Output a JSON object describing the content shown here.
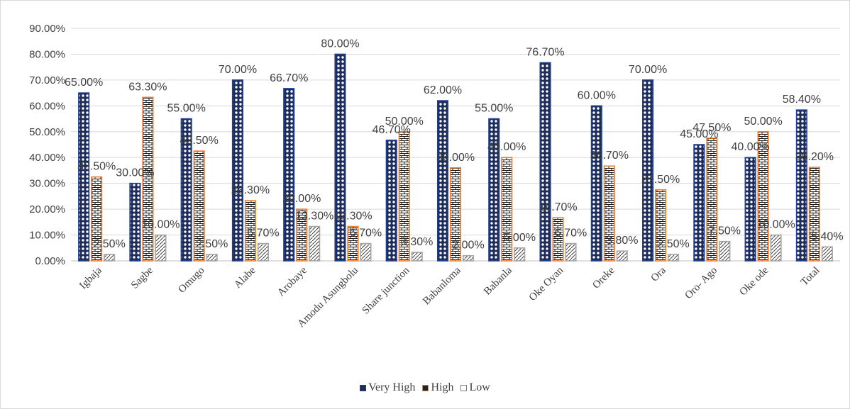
{
  "chart_data": {
    "type": "bar",
    "categories": [
      "Igbaja",
      "Sagbe",
      "Omugo",
      "Alabe",
      "Arobaye",
      "Amodu Asungbolu",
      "Share junction",
      "Babanloma",
      "Babanla",
      "Oke Oyan",
      "Oreke",
      "Ora",
      "Oro- Ago",
      "Oke ode",
      "Total"
    ],
    "series": [
      {
        "name": "Very High",
        "values": [
          65.0,
          30.0,
          55.0,
          70.0,
          66.7,
          80.0,
          46.7,
          62.0,
          55.0,
          76.7,
          60.0,
          70.0,
          45.0,
          40.0,
          58.4
        ],
        "labels": [
          "65.00%",
          "30.00%",
          "55.00%",
          "70.00%",
          "66.70%",
          "80.00%",
          "46.70%",
          "62.00%",
          "55.00%",
          "76.70%",
          "60.00%",
          "70.00%",
          "45.00%",
          "40.00%",
          "58.40%"
        ],
        "color": "#1f3f8f",
        "pattern": "circles"
      },
      {
        "name": "High",
        "values": [
          32.5,
          63.3,
          42.5,
          23.3,
          20.0,
          13.3,
          50.0,
          36.0,
          40.0,
          16.7,
          36.7,
          27.5,
          47.5,
          50.0,
          36.2
        ],
        "labels": [
          "32.50%",
          "63.30%",
          "42.50%",
          "23.30%",
          "20.00%",
          "13.30%",
          "50.00%",
          "36.00%",
          "40.00%",
          "16.70%",
          "36.70%",
          "27.50%",
          "47.50%",
          "50.00%",
          "36.20%"
        ],
        "color": "#ed7d31",
        "pattern": "bricks"
      },
      {
        "name": "Low",
        "values": [
          2.5,
          10.0,
          2.5,
          6.7,
          13.3,
          6.7,
          3.3,
          2.0,
          5.0,
          6.7,
          3.8,
          2.5,
          7.5,
          10.0,
          5.4
        ],
        "labels": [
          "2.50%",
          "10.00%",
          "2.50%",
          "6.70%",
          "13.30%",
          "6.70%",
          "3.30%",
          "2.00%",
          "5.00%",
          "6.70%",
          "3.80%",
          "2.50%",
          "7.50%",
          "10.00%",
          "5.40%"
        ],
        "color": "#a5a5a5",
        "pattern": "diagonal"
      }
    ],
    "y_ticks": [
      "0.00%",
      "10.00%",
      "20.00%",
      "30.00%",
      "40.00%",
      "50.00%",
      "60.00%",
      "70.00%",
      "80.00%",
      "90.00%"
    ],
    "ylim": [
      0,
      90
    ],
    "grid": true,
    "legend_position": "bottom"
  },
  "legend": {
    "very_high": "Very High",
    "high": "High",
    "low": "Low"
  }
}
